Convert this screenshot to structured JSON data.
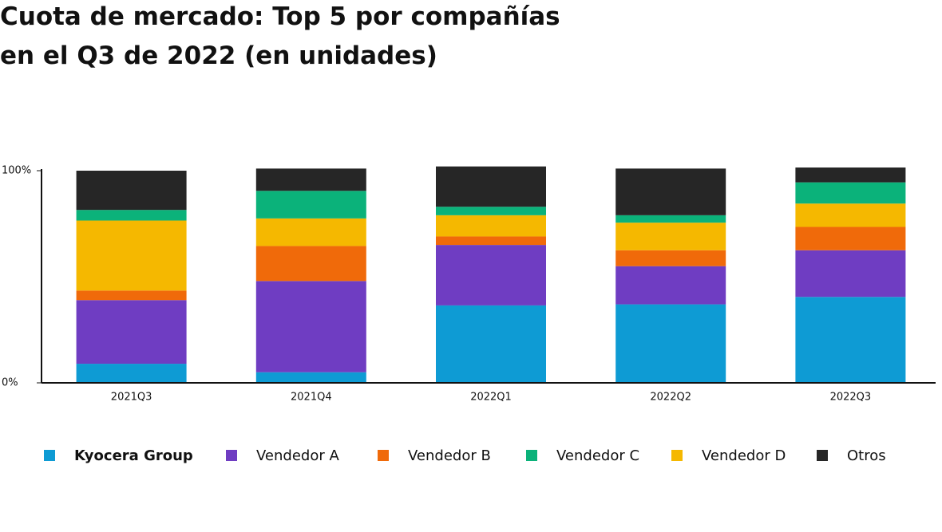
{
  "chart_data": {
    "type": "stacked_bar",
    "title_lines": [
      "Cuota de mercado: Top 5 por compañías",
      "en el Q3 de 2022 (en unidades)"
    ],
    "categories": [
      "2021Q3",
      "2021Q4",
      "2022Q1",
      "2022Q2",
      "2022Q3"
    ],
    "series": [
      {
        "name": "Kyocera Group",
        "color": "#0e9bd4",
        "values": [
          9,
          5,
          36.5,
          37,
          40.5
        ]
      },
      {
        "name": "Vendedor A",
        "color": "#6f3dc2",
        "values": [
          30,
          43,
          28.5,
          18,
          22
        ]
      },
      {
        "name": "Vendedor B",
        "color": "#f06a0a",
        "values": [
          4.5,
          16.5,
          4,
          7.5,
          11
        ]
      },
      {
        "name": "Vendedor D",
        "color": "#f5b800",
        "values": [
          33,
          13,
          10,
          13,
          11
        ]
      },
      {
        "name": "Vendedor C",
        "color": "#0bb27a",
        "values": [
          5,
          13,
          4,
          3.5,
          10
        ]
      },
      {
        "name": "Otros",
        "color": "#262626",
        "values": [
          18.5,
          10.5,
          19,
          22,
          7
        ]
      }
    ],
    "legend_order": [
      0,
      1,
      2,
      4,
      3,
      5
    ],
    "ylim": [
      0,
      100
    ],
    "yticks": [
      {
        "value": 0,
        "label": "0%"
      },
      {
        "value": 100,
        "label": "100%"
      }
    ]
  }
}
